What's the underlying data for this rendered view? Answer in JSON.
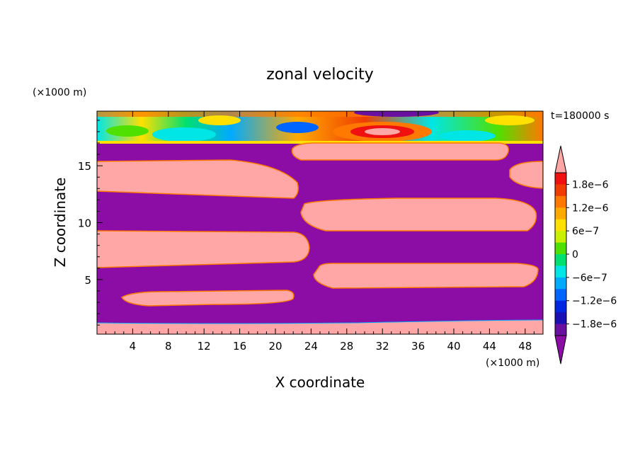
{
  "chart_data": {
    "type": "heatmap",
    "title": "zonal velocity",
    "time_label": "t=180000 s",
    "xlabel": "X coordinate",
    "ylabel": "Z coordinate",
    "x_unit": "(×1000 m)",
    "y_unit": "(×1000 m)",
    "xlim": [
      0,
      50
    ],
    "ylim": [
      0.2,
      19.8
    ],
    "x_ticks": [
      4,
      8,
      12,
      16,
      20,
      24,
      28,
      32,
      36,
      40,
      44,
      48
    ],
    "x_tick_labels": [
      "4",
      "8",
      "12",
      "16",
      "20",
      "24",
      "28",
      "32",
      "36",
      "40",
      "44",
      "48"
    ],
    "y_ticks": [
      5,
      10,
      15
    ],
    "y_tick_labels": [
      "5",
      "10",
      "15"
    ],
    "colorbar": {
      "levels": [
        -1.8e-06,
        -1.5e-06,
        -1.2e-06,
        -9e-07,
        -6e-07,
        -3e-07,
        0,
        3e-07,
        6e-07,
        9e-07,
        1.2e-06,
        1.5e-06,
        1.8e-06
      ],
      "labels": [
        "1.8e−6",
        "1.2e−6",
        "6e−7",
        "0",
        "−6e−7",
        "−1.2e−6",
        "−1.8e−6"
      ],
      "colors": [
        "#ffa6a6",
        "#f01010",
        "#f03c00",
        "#ff7800",
        "#ffaa00",
        "#ffe000",
        "#c8f000",
        "#50e000",
        "#00e070",
        "#00e6e6",
        "#00aaff",
        "#0064ff",
        "#0028e0",
        "#1a10b4",
        "#6a10a0",
        "#8c0ca6"
      ],
      "over_color": "#ffa6a6",
      "under_color": "#8c0ca6",
      "extend": "both"
    },
    "background_value": "negative (below −1.8e−6)",
    "pink_regions_value": "positive (above 1.8e−6)",
    "layers_note": "alternating positive/negative zonal jets below z≈17, turbulent band above"
  }
}
